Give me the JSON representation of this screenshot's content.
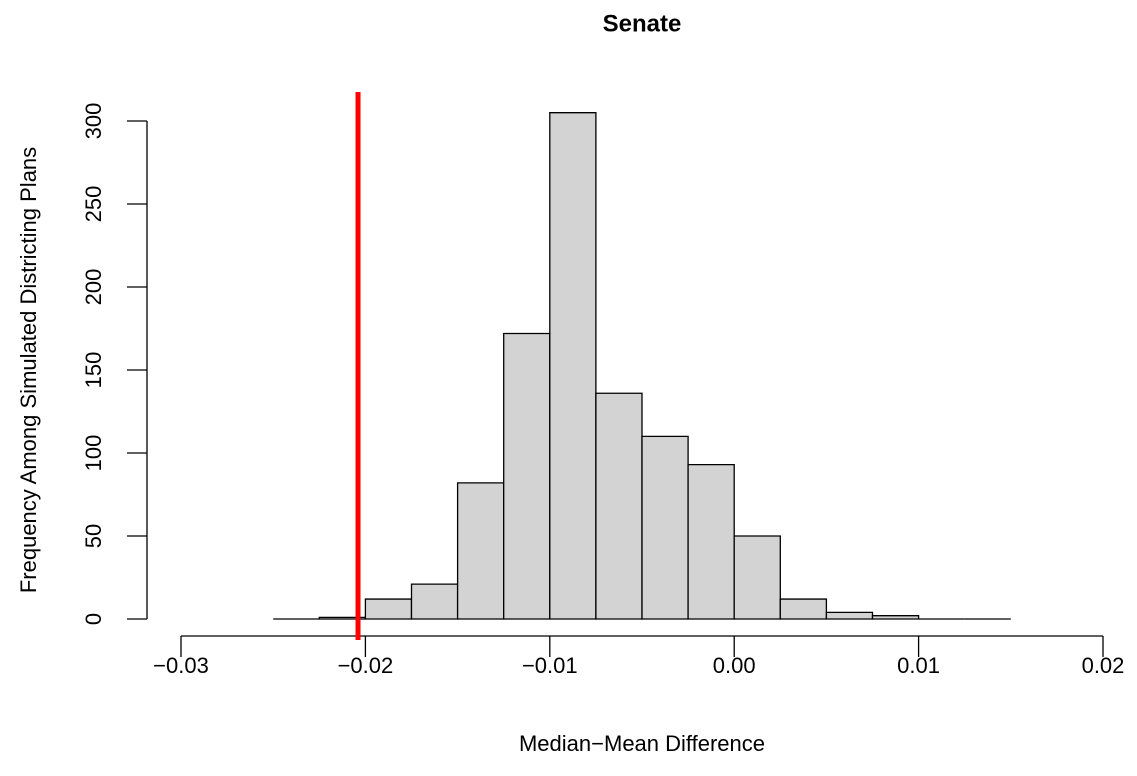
{
  "chart_data": {
    "type": "histogram",
    "title": "Senate",
    "xlabel": "Median−Mean Difference",
    "ylabel": "Frequency Among Simulated Districting Plans",
    "bins": [
      -0.025,
      -0.0225,
      -0.02,
      -0.0175,
      -0.015,
      -0.0125,
      -0.01,
      -0.0075,
      -0.005,
      -0.0025,
      0,
      0.0025,
      0.005,
      0.0075,
      0.01,
      0.0125,
      0.015
    ],
    "values": [
      0,
      1,
      12,
      21,
      82,
      172,
      305,
      136,
      110,
      93,
      50,
      12,
      4,
      2,
      0,
      0
    ],
    "color": "#d3d3d3",
    "xlim": [
      -0.03,
      0.02
    ],
    "xticks": [
      {
        "value": -0.03,
        "label": "−0.03"
      },
      {
        "value": -0.02,
        "label": "−0.02"
      },
      {
        "value": -0.01,
        "label": "−0.01"
      },
      {
        "value": 0,
        "label": "0.00"
      },
      0.01,
      0.02
    ],
    "ylim": [
      0,
      300
    ],
    "yticks": [
      0,
      50,
      100,
      150,
      200,
      250,
      300
    ],
    "vline": {
      "value": -0.0204,
      "color": "#ff0000"
    }
  }
}
